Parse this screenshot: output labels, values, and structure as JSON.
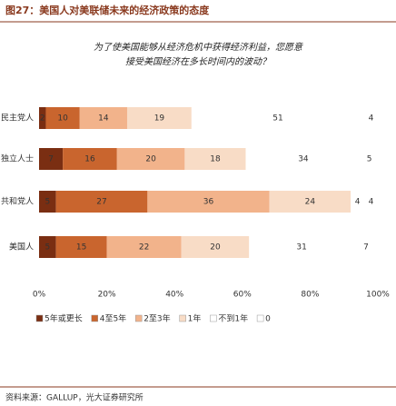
{
  "chart_data": {
    "type": "stacked-barh",
    "title": "图27：美国人对美联储未来的经济政策的态度",
    "subtitle": [
      "为了使美国能够从经济危机中获得经济利益，您愿意",
      "接受美国经济在多长时间内的波动？"
    ],
    "categories": [
      "民主党人",
      "独立人士",
      "共和党人",
      "美国人"
    ],
    "series": [
      {
        "name": "5年或更长",
        "color": "#7a2e12",
        "values": [
          2,
          7,
          5,
          5
        ]
      },
      {
        "name": "4至5年",
        "color": "#c9652e",
        "values": [
          10,
          16,
          27,
          15
        ]
      },
      {
        "name": "2至3年",
        "color": "#f2b38b",
        "values": [
          14,
          20,
          36,
          22
        ]
      },
      {
        "name": "1年",
        "color": "#f8dcc6",
        "values": [
          19,
          18,
          24,
          20
        ]
      },
      {
        "name": "不到1年",
        "color": "#ffffff",
        "values": [
          51,
          34,
          4,
          31
        ]
      },
      {
        "name": "0",
        "color": "#ffffff",
        "values": [
          4,
          5,
          4,
          7
        ]
      }
    ],
    "xlim": [
      0,
      100
    ],
    "xticks": [
      {
        "value": 0,
        "label": "0%"
      },
      {
        "value": 20,
        "label": "20%"
      },
      {
        "value": 40,
        "label": "40%"
      },
      {
        "value": 60,
        "label": "60%"
      },
      {
        "value": 80,
        "label": "80%"
      },
      {
        "value": 100,
        "label": "100%"
      }
    ],
    "source": "资料来源：GALLUP，光大证券研究所"
  }
}
